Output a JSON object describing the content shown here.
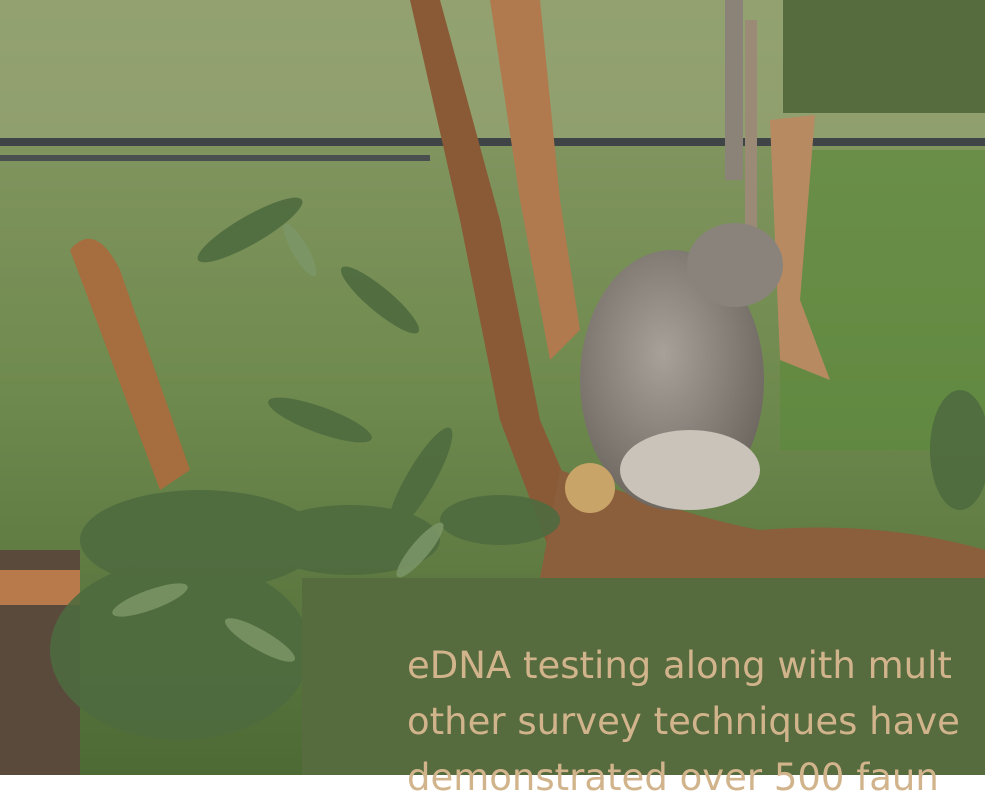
{
  "body": {
    "lines": [
      "eDNA testing along with mult",
      "other survey techniques have",
      "demonstrated over 500 faun"
    ]
  }
}
